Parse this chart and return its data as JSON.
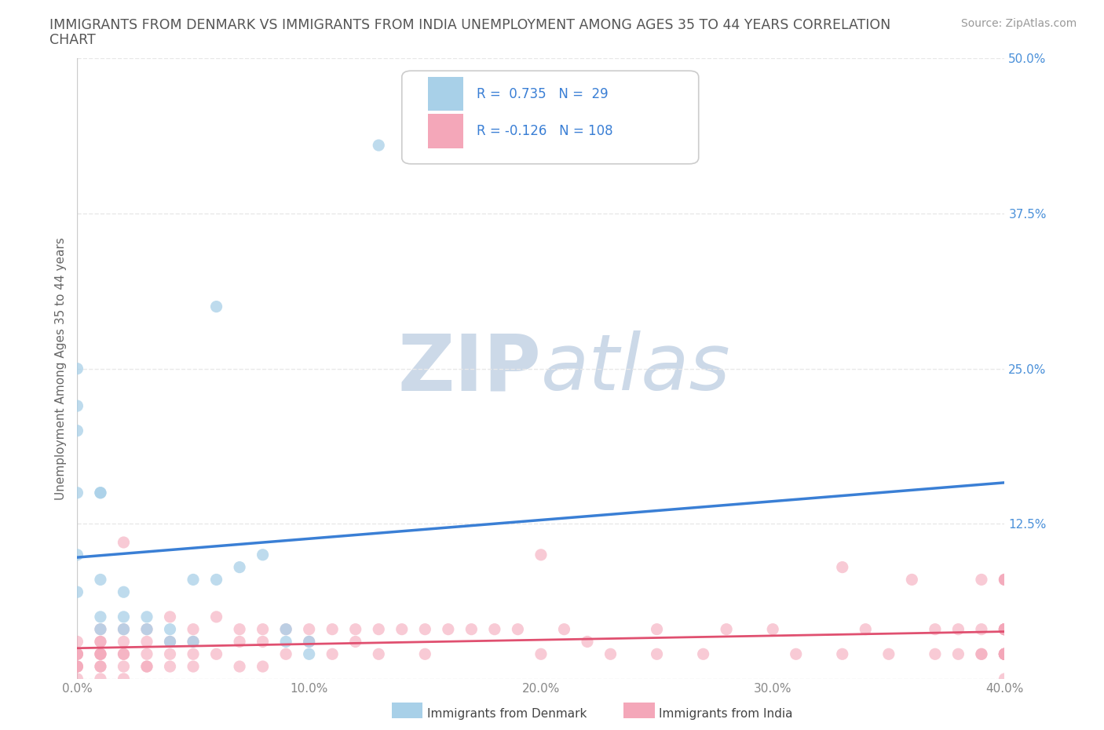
{
  "title_line1": "IMMIGRANTS FROM DENMARK VS IMMIGRANTS FROM INDIA UNEMPLOYMENT AMONG AGES 35 TO 44 YEARS CORRELATION",
  "title_line2": "CHART",
  "source_text": "Source: ZipAtlas.com",
  "ylabel": "Unemployment Among Ages 35 to 44 years",
  "xlim": [
    0.0,
    0.4
  ],
  "ylim": [
    0.0,
    0.5
  ],
  "xticks": [
    0.0,
    0.1,
    0.2,
    0.3,
    0.4
  ],
  "yticks": [
    0.0,
    0.125,
    0.25,
    0.375,
    0.5
  ],
  "xtick_labels": [
    "0.0%",
    "10.0%",
    "20.0%",
    "30.0%",
    "40.0%"
  ],
  "ytick_labels": [
    "",
    "12.5%",
    "25.0%",
    "37.5%",
    "50.0%"
  ],
  "denmark_color": "#a8d0e8",
  "india_color": "#f4a7b9",
  "denmark_line_color": "#3a7fd5",
  "india_line_color": "#e05070",
  "ytick_color": "#4a90d9",
  "xtick_color": "#888888",
  "R_denmark": 0.735,
  "N_denmark": 29,
  "R_india": -0.126,
  "N_india": 108,
  "denmark_x": [
    0.0,
    0.0,
    0.0,
    0.0,
    0.0,
    0.0,
    0.01,
    0.01,
    0.01,
    0.01,
    0.01,
    0.02,
    0.02,
    0.02,
    0.03,
    0.03,
    0.04,
    0.04,
    0.05,
    0.05,
    0.06,
    0.06,
    0.07,
    0.08,
    0.09,
    0.09,
    0.1,
    0.1,
    0.13
  ],
  "denmark_y": [
    0.25,
    0.22,
    0.2,
    0.15,
    0.1,
    0.07,
    0.15,
    0.15,
    0.08,
    0.05,
    0.04,
    0.07,
    0.05,
    0.04,
    0.05,
    0.04,
    0.04,
    0.03,
    0.03,
    0.08,
    0.3,
    0.08,
    0.09,
    0.1,
    0.04,
    0.03,
    0.03,
    0.02,
    0.43
  ],
  "india_x": [
    0.0,
    0.0,
    0.0,
    0.0,
    0.0,
    0.0,
    0.0,
    0.0,
    0.01,
    0.01,
    0.01,
    0.01,
    0.01,
    0.01,
    0.01,
    0.01,
    0.01,
    0.02,
    0.02,
    0.02,
    0.02,
    0.02,
    0.02,
    0.02,
    0.03,
    0.03,
    0.03,
    0.03,
    0.03,
    0.04,
    0.04,
    0.04,
    0.04,
    0.05,
    0.05,
    0.05,
    0.05,
    0.06,
    0.06,
    0.07,
    0.07,
    0.07,
    0.08,
    0.08,
    0.08,
    0.09,
    0.09,
    0.1,
    0.1,
    0.11,
    0.11,
    0.12,
    0.12,
    0.13,
    0.13,
    0.14,
    0.15,
    0.15,
    0.16,
    0.17,
    0.18,
    0.19,
    0.2,
    0.2,
    0.21,
    0.22,
    0.23,
    0.25,
    0.25,
    0.27,
    0.28,
    0.3,
    0.31,
    0.33,
    0.33,
    0.34,
    0.35,
    0.36,
    0.37,
    0.37,
    0.38,
    0.38,
    0.39,
    0.39,
    0.39,
    0.39,
    0.4,
    0.4,
    0.4,
    0.4,
    0.4,
    0.4,
    0.4,
    0.4,
    0.4,
    0.4,
    0.4,
    0.4,
    0.4,
    0.4,
    0.4,
    0.4,
    0.4,
    0.4,
    0.4,
    0.4,
    0.4,
    0.4
  ],
  "india_y": [
    0.03,
    0.02,
    0.02,
    0.02,
    0.01,
    0.01,
    0.01,
    0.0,
    0.04,
    0.03,
    0.03,
    0.02,
    0.02,
    0.02,
    0.01,
    0.01,
    0.0,
    0.11,
    0.04,
    0.03,
    0.02,
    0.02,
    0.01,
    0.0,
    0.04,
    0.03,
    0.02,
    0.01,
    0.01,
    0.05,
    0.03,
    0.02,
    0.01,
    0.04,
    0.03,
    0.02,
    0.01,
    0.05,
    0.02,
    0.04,
    0.03,
    0.01,
    0.04,
    0.03,
    0.01,
    0.04,
    0.02,
    0.04,
    0.03,
    0.04,
    0.02,
    0.04,
    0.03,
    0.04,
    0.02,
    0.04,
    0.04,
    0.02,
    0.04,
    0.04,
    0.04,
    0.04,
    0.1,
    0.02,
    0.04,
    0.03,
    0.02,
    0.04,
    0.02,
    0.02,
    0.04,
    0.04,
    0.02,
    0.09,
    0.02,
    0.04,
    0.02,
    0.08,
    0.04,
    0.02,
    0.04,
    0.02,
    0.04,
    0.02,
    0.08,
    0.02,
    0.04,
    0.02,
    0.08,
    0.04,
    0.02,
    0.04,
    0.02,
    0.04,
    0.02,
    0.08,
    0.02,
    0.04,
    0.02,
    0.08,
    0.02,
    0.04,
    0.02,
    0.04,
    0.02,
    0.04,
    0.02,
    0.0
  ],
  "watermark_zip": "ZIP",
  "watermark_atlas": "atlas",
  "watermark_color": "#ccd9e8",
  "background_color": "#ffffff",
  "grid_color": "#e8e8e8",
  "title_color": "#555555",
  "legend_label_denmark": "Immigrants from Denmark",
  "legend_label_india": "Immigrants from India"
}
